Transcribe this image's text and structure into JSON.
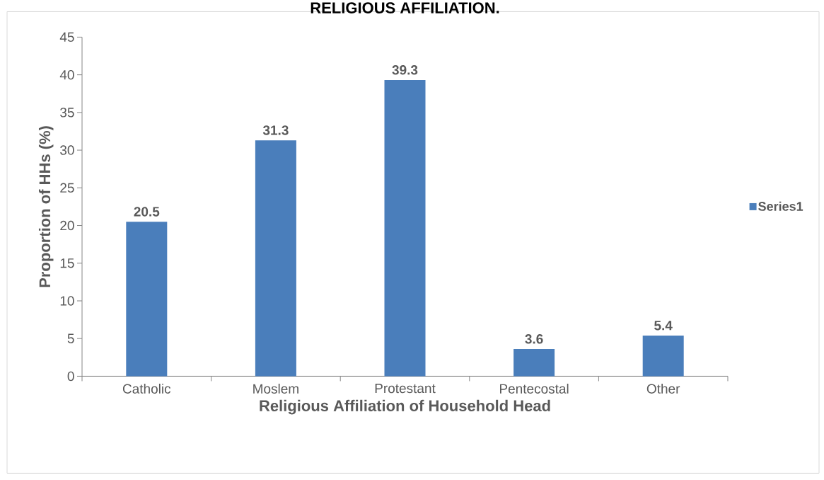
{
  "chart_data": {
    "type": "bar",
    "title": "RELIGIOUS AFFILIATION.",
    "xlabel": "Religious Affiliation of Household Head",
    "ylabel": "Proportion of HHs (%)",
    "categories": [
      "Catholic",
      "Moslem",
      "Protestant",
      "Pentecostal",
      "Other"
    ],
    "series": [
      {
        "name": "Series1",
        "color": "#4a7ebb",
        "values": [
          20.5,
          31.3,
          39.3,
          3.6,
          5.4
        ]
      }
    ],
    "ylim": [
      0,
      45
    ],
    "yticks": [
      0,
      5,
      10,
      15,
      20,
      25,
      30,
      35,
      40,
      45
    ],
    "data_labels": true,
    "legend": "right",
    "grid": false
  }
}
